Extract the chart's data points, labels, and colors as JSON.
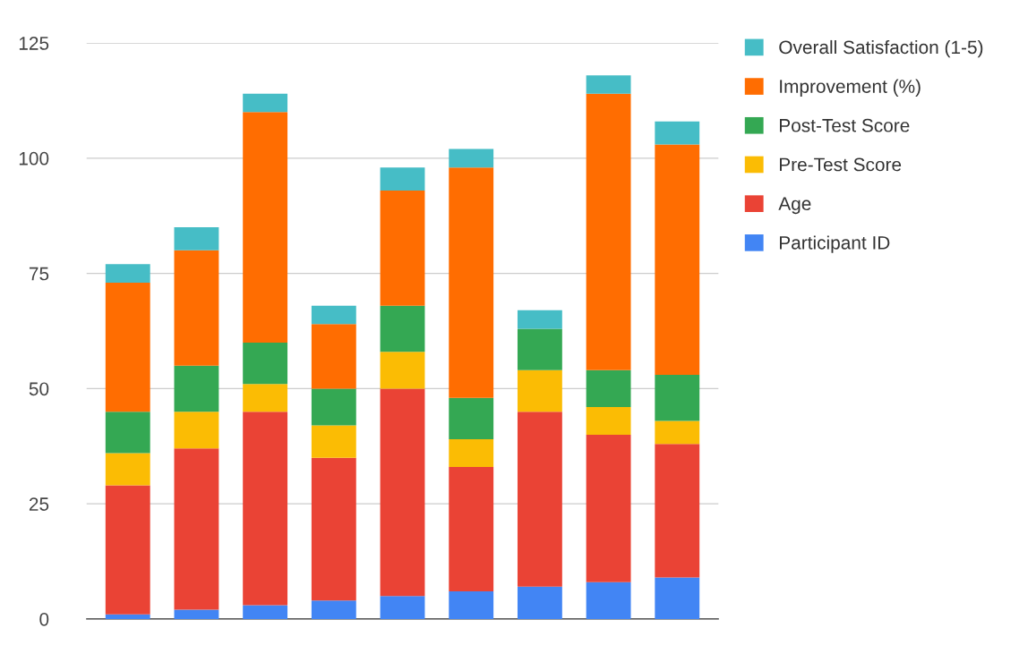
{
  "chart_data": {
    "type": "bar",
    "stacked": true,
    "categories": [
      null,
      null,
      null,
      null,
      null,
      null,
      null,
      null,
      null
    ],
    "series": [
      {
        "name": "Participant ID",
        "color": "#4285f4",
        "values": [
          1,
          2,
          3,
          4,
          5,
          6,
          7,
          8,
          9
        ]
      },
      {
        "name": "Age",
        "color": "#ea4335",
        "values": [
          28,
          35,
          42,
          31,
          45,
          27,
          38,
          32,
          29
        ]
      },
      {
        "name": "Pre-Test Score",
        "color": "#fbbc04",
        "values": [
          7,
          8,
          6,
          7,
          8,
          6,
          9,
          6,
          5
        ]
      },
      {
        "name": "Post-Test Score",
        "color": "#34a853",
        "values": [
          9,
          10,
          9,
          8,
          10,
          9,
          9,
          8,
          10
        ]
      },
      {
        "name": "Improvement (%)",
        "color": "#ff6d01",
        "values": [
          28,
          25,
          50,
          14,
          25,
          50,
          0,
          60,
          50
        ]
      },
      {
        "name": "Overall Satisfaction (1-5)",
        "color": "#46bdc6",
        "values": [
          4,
          5,
          4,
          4,
          5,
          4,
          4,
          4,
          5
        ]
      }
    ],
    "ylim": [
      0,
      125
    ],
    "yticks": [
      0,
      25,
      50,
      75,
      100,
      125
    ],
    "grid": "y",
    "legend": "top right"
  }
}
